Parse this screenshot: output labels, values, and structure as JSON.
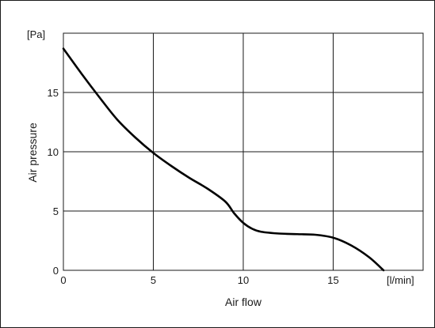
{
  "chart_data": {
    "type": "line",
    "title": "",
    "xlabel": "Air flow",
    "ylabel": "Air pressure",
    "x_unit": "[l/min]",
    "y_unit": "[Pa]",
    "xlim": [
      0,
      20
    ],
    "ylim": [
      0,
      20
    ],
    "x_ticks": [
      0,
      5,
      10,
      15
    ],
    "y_ticks": [
      0,
      5,
      10,
      15
    ],
    "grid": true,
    "line_color": "#000000",
    "grid_color": "#1a1a1a",
    "series": [
      {
        "x": [
          0,
          1,
          2,
          3,
          4,
          5,
          6,
          7,
          8,
          9,
          9.5,
          10,
          10.5,
          11,
          12,
          13,
          14,
          15,
          16,
          17,
          17.8
        ],
        "y": [
          18.7,
          16.6,
          14.6,
          12.7,
          11.2,
          9.9,
          8.8,
          7.8,
          6.9,
          5.8,
          4.8,
          4.0,
          3.5,
          3.25,
          3.1,
          3.05,
          3.0,
          2.75,
          2.1,
          1.1,
          0
        ]
      }
    ]
  }
}
